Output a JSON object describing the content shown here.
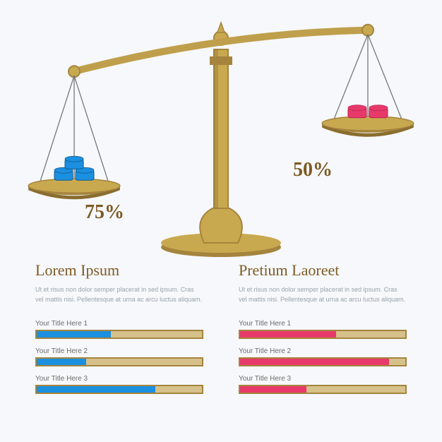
{
  "background_color": "#f6f8fb",
  "scale": {
    "brass_light": "#c9a94f",
    "brass_dark": "#a5843e",
    "brass_shadow": "#8a6d2f",
    "chain_color": "#777777",
    "tilt_deg": -8,
    "left": {
      "percent_label": "75%",
      "block_color": "#1b8fe0",
      "block_shadow": "#0f5a8f",
      "block_count": 3
    },
    "right": {
      "percent_label": "50%",
      "block_color": "#e83a6a",
      "block_shadow": "#b82250",
      "block_count": 2
    },
    "label_color": "#7d5a24",
    "label_fontsize": 28
  },
  "left_column": {
    "title": "Lorem Ipsum",
    "desc": "Ut et risus non dolor semper placerat in sed ipsum. Cras vel mattis nisi. Pellentesque at urna ac arcu luctus aliquam.",
    "bar_color": "#1b8fe0",
    "bars": [
      {
        "label": "Your Title Here 1",
        "value": 45
      },
      {
        "label": "Your Title Here 2",
        "value": 30
      },
      {
        "label": "Your Title Here 3",
        "value": 72
      }
    ]
  },
  "right_column": {
    "title": "Pretium Laoreet",
    "desc": "Ut et risus non dolor semper placerat in sed ipsum. Cras vel mattis nisi. Pellentesque at urna ac arcu luctus aliquam.",
    "bar_color": "#e83a6a",
    "bars": [
      {
        "label": "Your Title Here 1",
        "value": 58
      },
      {
        "label": "Your Title Here 2",
        "value": 90
      },
      {
        "label": "Your Title Here 3",
        "value": 40
      }
    ]
  },
  "bar_track_fill": "#d6c18a",
  "bar_track_border": "#a5843e"
}
